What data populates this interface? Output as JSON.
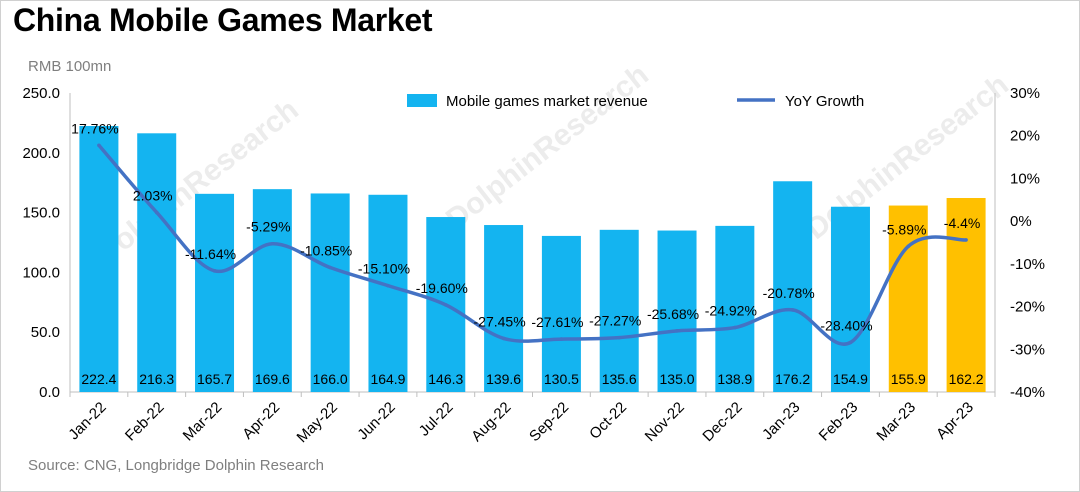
{
  "title": "China Mobile Games Market",
  "unit": "RMB 100mn",
  "source": "Source: CNG, Longbridge Dolphin Research",
  "watermark": "DolphinResearch",
  "colors": {
    "bar": "#14b4f0",
    "bar_highlight": "#ffc000",
    "line": "#4472c4"
  },
  "chart_data": {
    "type": "bar",
    "categories": [
      "Jan-22",
      "Feb-22",
      "Mar-22",
      "Apr-22",
      "May-22",
      "Jun-22",
      "Jul-22",
      "Aug-22",
      "Sep-22",
      "Oct-22",
      "Nov-22",
      "Dec-22",
      "Jan-23",
      "Feb-23",
      "Mar-23",
      "Apr-23"
    ],
    "series": [
      {
        "name": "Mobile games market revenue",
        "type": "bar",
        "axis": "left",
        "values": [
          222.4,
          216.3,
          165.7,
          169.6,
          166.0,
          164.9,
          146.3,
          139.6,
          130.5,
          135.6,
          135.0,
          138.9,
          176.2,
          154.9,
          155.9,
          162.2
        ],
        "labels": [
          "222.4",
          "216.3",
          "165.7",
          "169.6",
          "166.0",
          "164.9",
          "146.3",
          "139.6",
          "130.5",
          "135.6",
          "135.0",
          "138.9",
          "176.2",
          "154.9",
          "155.9",
          "162.2"
        ],
        "highlight_categories": [
          "Mar-23",
          "Apr-23"
        ]
      },
      {
        "name": "YoY Growth",
        "type": "line",
        "axis": "right",
        "values": [
          17.76,
          2.03,
          -11.64,
          -5.29,
          -10.85,
          -15.1,
          -19.6,
          -27.45,
          -27.61,
          -27.27,
          -25.68,
          -24.92,
          -20.78,
          -28.4,
          -5.89,
          -4.4
        ],
        "labels": [
          "17.76%",
          "2.03%",
          "-11.64%",
          "-5.29%",
          "-10.85%",
          "-15.10%",
          "-19.60%",
          "-27.45%",
          "-27.61%",
          "-27.27%",
          "-25.68%",
          "-24.92%",
          "-20.78%",
          "-28.40%",
          "-5.89%",
          "-4.4%"
        ]
      }
    ],
    "y_left": {
      "range": [
        0,
        250
      ],
      "ticks": [
        "0.0",
        "50.0",
        "100.0",
        "150.0",
        "200.0",
        "250.0"
      ]
    },
    "y_right": {
      "range": [
        -40,
        30
      ],
      "ticks": [
        "-40%",
        "-30%",
        "-20%",
        "-10%",
        "0%",
        "10%",
        "20%",
        "30%"
      ]
    },
    "grid": false,
    "legend": "top-center"
  }
}
